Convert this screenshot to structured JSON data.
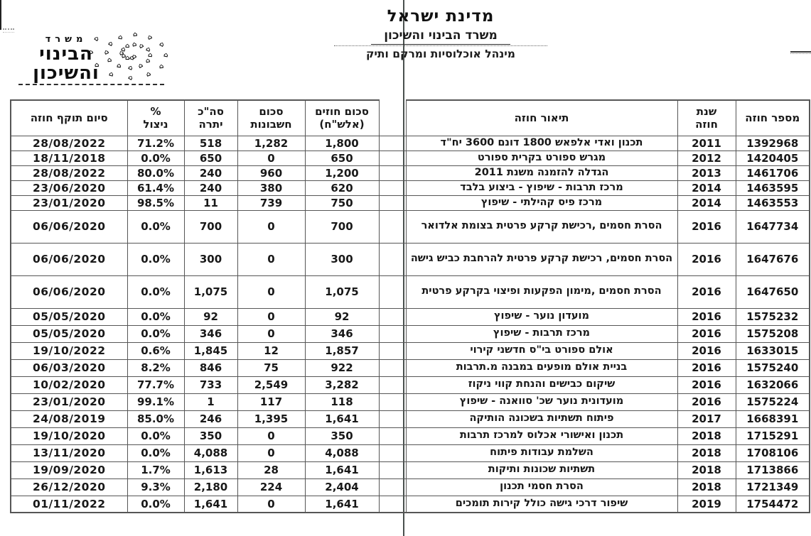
{
  "style": {
    "ink": "#1b1b1b",
    "border": "#565656",
    "paper": "#ffffff"
  },
  "letterhead": {
    "title": "מדינת ישראל",
    "subtitle": "משרד הבינוי והשיכון",
    "department": "מינהל אוכלוסיות ומרקם ותיק"
  },
  "logo": {
    "line1": "משרד",
    "line2": "הבינוי",
    "line3": "והשיכון",
    "icon": "house-cluster"
  },
  "table": {
    "headers": {
      "contract_number": "מספר חוזה",
      "contract_year": "שנת\nחוזה",
      "description": "תיאור חוזה",
      "amount": "סכום חוזים\n(אלש\"ח)",
      "accounts": "סכום\nחשבונות",
      "balance": "סה\"כ\nיתרה",
      "utilization": "%\nניצול",
      "end_date": "סיום תוקף חוזה"
    },
    "rows": [
      {
        "number": "1392968",
        "year": "2011",
        "desc": "תכנון ואדי אלפאש 1800 דונם 3600 יח\"ד",
        "amount": "1,800",
        "accounts": "1,282",
        "balance": "518",
        "util": "71.2%",
        "end": "28/08/2022"
      },
      {
        "number": "1420405",
        "year": "2012",
        "desc": "מגרש ספורט בקרית ספורט",
        "amount": "650",
        "accounts": "0",
        "balance": "650",
        "util": "0.0%",
        "end": "18/11/2018"
      },
      {
        "number": "1461706",
        "year": "2013",
        "desc": "הגדלה להזמנה משנת 2011",
        "amount": "1,200",
        "accounts": "960",
        "balance": "240",
        "util": "80.0%",
        "end": "28/08/2022"
      },
      {
        "number": "1463595",
        "year": "2014",
        "desc": "מרכז תרבות - שיפוץ - ביצוע בלבד",
        "amount": "620",
        "accounts": "380",
        "balance": "240",
        "util": "61.4%",
        "end": "23/06/2020"
      },
      {
        "number": "1463553",
        "year": "2014",
        "desc": "מרכז פיס קהילתי - שיפוץ",
        "amount": "750",
        "accounts": "739",
        "balance": "11",
        "util": "98.5%",
        "end": "23/01/2020"
      },
      {
        "number": "1647734",
        "year": "2016",
        "desc": "הסרת חסמים ,רכישת קרקע פרטית בצומת אלדואר",
        "amount": "700",
        "accounts": "0",
        "balance": "700",
        "util": "0.0%",
        "end": "06/06/2020"
      },
      {
        "number": "1647676",
        "year": "2016",
        "desc": "הסרת חסמים, רכישת קרקע פרטית להרחבת כביש גישה",
        "amount": "300",
        "accounts": "0",
        "balance": "300",
        "util": "0.0%",
        "end": "06/06/2020"
      },
      {
        "number": "1647650",
        "year": "2016",
        "desc": "הסרת חסמים ,מימון הפקעות ופיצוי בקרקע פרטית",
        "amount": "1,075",
        "accounts": "0",
        "balance": "1,075",
        "util": "0.0%",
        "end": "06/06/2020"
      },
      {
        "number": "1575232",
        "year": "2016",
        "desc": "מועדון נוער - שיפוץ",
        "amount": "92",
        "accounts": "0",
        "balance": "92",
        "util": "0.0%",
        "end": "05/05/2020"
      },
      {
        "number": "1575208",
        "year": "2016",
        "desc": "מרכז תרבות - שיפוץ",
        "amount": "346",
        "accounts": "0",
        "balance": "346",
        "util": "0.0%",
        "end": "05/05/2020"
      },
      {
        "number": "1633015",
        "year": "2016",
        "desc": "אולם ספורט בי\"ס חדשני קירוי",
        "amount": "1,857",
        "accounts": "12",
        "balance": "1,845",
        "util": "0.6%",
        "end": "19/10/2022"
      },
      {
        "number": "1575240",
        "year": "2016",
        "desc": "בניית אולם מופעים במבנה מ.תרבות",
        "amount": "922",
        "accounts": "75",
        "balance": "846",
        "util": "8.2%",
        "end": "06/03/2020"
      },
      {
        "number": "1632066",
        "year": "2016",
        "desc": "שיקום כבישים והנחת קווי ניקוז",
        "amount": "3,282",
        "accounts": "2,549",
        "balance": "733",
        "util": "77.7%",
        "end": "10/02/2020"
      },
      {
        "number": "1575224",
        "year": "2016",
        "desc": "מועדונית נוער שכ' סוואנה - שיפוץ",
        "amount": "118",
        "accounts": "117",
        "balance": "1",
        "util": "99.1%",
        "end": "23/01/2020"
      },
      {
        "number": "1668391",
        "year": "2017",
        "desc": "פיתוח תשתיות בשכונה הותיקה",
        "amount": "1,641",
        "accounts": "1,395",
        "balance": "246",
        "util": "85.0%",
        "end": "24/08/2019"
      },
      {
        "number": "1715291",
        "year": "2018",
        "desc": "תכנון ואישורי אכלוס למרכז תרבות",
        "amount": "350",
        "accounts": "0",
        "balance": "350",
        "util": "0.0%",
        "end": "19/10/2020"
      },
      {
        "number": "1708106",
        "year": "2018",
        "desc": "השלמת עבודות פיתוח",
        "amount": "4,088",
        "accounts": "0",
        "balance": "4,088",
        "util": "0.0%",
        "end": "13/11/2020"
      },
      {
        "number": "1713866",
        "year": "2018",
        "desc": "תשתיות שכונות ותיקות",
        "amount": "1,641",
        "accounts": "28",
        "balance": "1,613",
        "util": "1.7%",
        "end": "19/09/2020"
      },
      {
        "number": "1721349",
        "year": "2018",
        "desc": "הסרת חסמי תכנון",
        "amount": "2,404",
        "accounts": "224",
        "balance": "2,180",
        "util": "9.3%",
        "end": "26/12/2020"
      },
      {
        "number": "1754472",
        "year": "2019",
        "desc": "שיפור דרכי גישה כולל קירות תומכים",
        "amount": "1,641",
        "accounts": "0",
        "balance": "1,641",
        "util": "0.0%",
        "end": "01/11/2022"
      }
    ]
  }
}
